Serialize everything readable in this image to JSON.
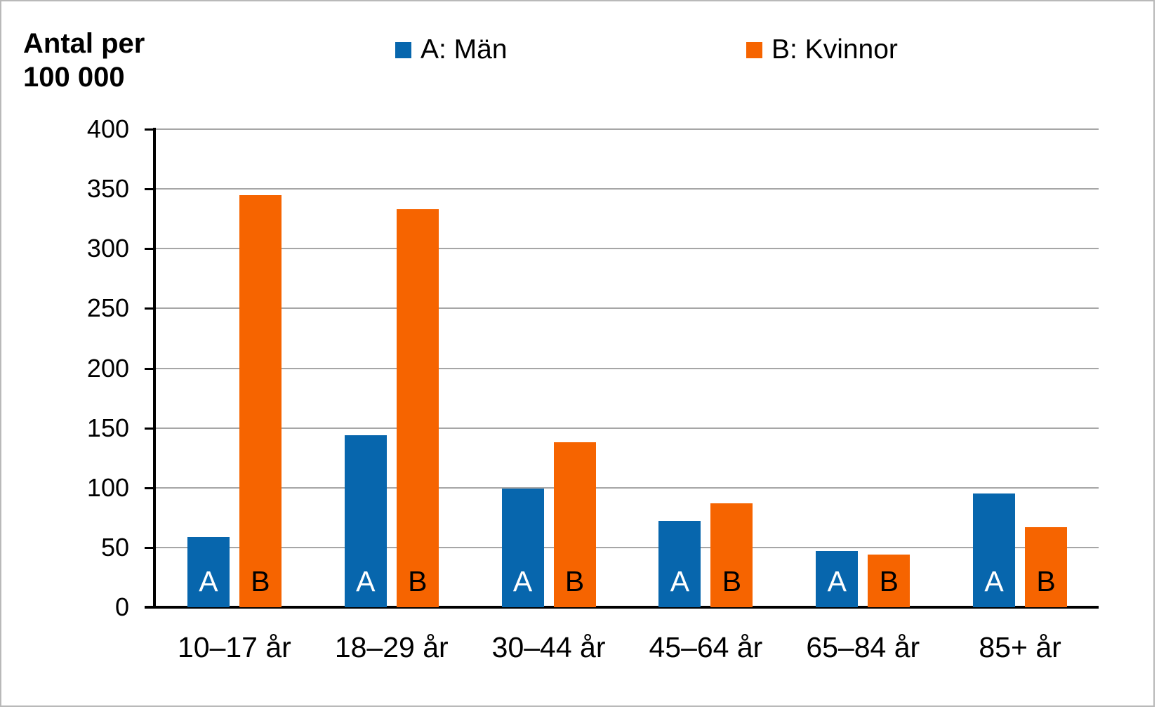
{
  "title": {
    "line1": "Antal per",
    "line2": "100 000"
  },
  "legend": {
    "items": [
      {
        "label": "A: Män",
        "color": "#0766AD"
      },
      {
        "label": "B: Kvinnor",
        "color": "#F66400"
      }
    ]
  },
  "chart_data": {
    "type": "bar",
    "title": "Antal per 100 000",
    "ylabel": "Antal per 100 000",
    "xlabel": "",
    "categories": [
      "10–17 år",
      "18–29 år",
      "30–44 år",
      "45–64 år",
      "65–84 år",
      "85+ år"
    ],
    "series": [
      {
        "name": "A: Män",
        "bar_letter": "A",
        "color": "#0766AD",
        "letter_color": "#FFFFFF",
        "values": [
          59,
          144,
          99,
          72,
          47,
          95
        ]
      },
      {
        "name": "B: Kvinnor",
        "bar_letter": "B",
        "color": "#F66400",
        "letter_color": "#000000",
        "values": [
          345,
          333,
          138,
          87,
          44,
          67
        ]
      }
    ],
    "ylim": [
      0,
      400
    ],
    "y_ticks": [
      0,
      50,
      100,
      150,
      200,
      250,
      300,
      350,
      400
    ],
    "grid": true,
    "gridline_color": "#A6A6A6",
    "axis_color": "#000000",
    "legend_position": "top"
  }
}
